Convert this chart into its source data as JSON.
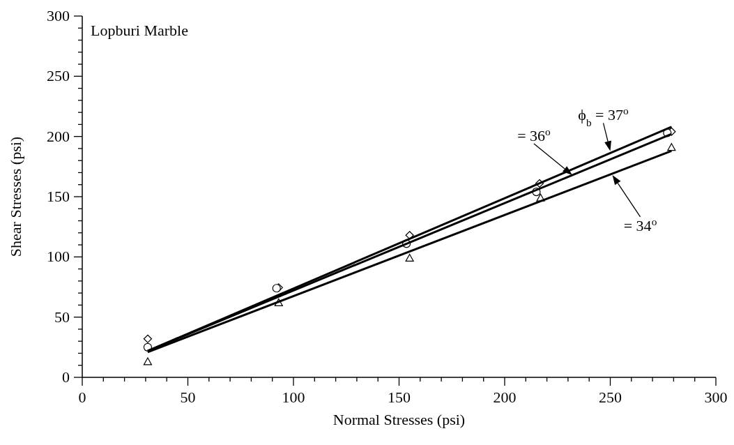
{
  "chart_data": {
    "type": "scatter",
    "xlabel": "Normal Stresses (psi)",
    "ylabel": "Shear Stresses (psi)",
    "xlim": [
      0,
      300
    ],
    "ylim": [
      0,
      300
    ],
    "xticks": [
      0,
      {
        "value": 10,
        "label": null
      },
      {
        "value": 20,
        "label": null
      },
      {
        "value": 30,
        "label": null
      },
      {
        "value": 40,
        "label": null
      },
      50,
      {
        "value": 60,
        "label": null
      },
      {
        "value": 70,
        "label": null
      },
      {
        "value": 80,
        "label": null
      },
      {
        "value": 90,
        "label": null
      },
      100,
      {
        "value": 110,
        "label": null
      },
      {
        "value": 120,
        "label": null
      },
      {
        "value": 130,
        "label": null
      },
      {
        "value": 140,
        "label": null
      },
      150,
      {
        "value": 160,
        "label": null
      },
      {
        "value": 170,
        "label": null
      },
      {
        "value": 180,
        "label": null
      },
      {
        "value": 190,
        "label": null
      },
      200,
      {
        "value": 210,
        "label": null
      },
      {
        "value": 220,
        "label": null
      },
      {
        "value": 230,
        "label": null
      },
      {
        "value": 240,
        "label": null
      },
      250,
      {
        "value": 260,
        "label": null
      },
      {
        "value": 270,
        "label": null
      },
      {
        "value": 280,
        "label": null
      },
      {
        "value": 290,
        "label": null
      },
      300
    ],
    "yticks": [
      0,
      {
        "value": 10,
        "label": null
      },
      {
        "value": 20,
        "label": null
      },
      {
        "value": 30,
        "label": null
      },
      {
        "value": 40,
        "label": null
      },
      50,
      {
        "value": 60,
        "label": null
      },
      {
        "value": 70,
        "label": null
      },
      {
        "value": 80,
        "label": null
      },
      {
        "value": 90,
        "label": null
      },
      100,
      {
        "value": 110,
        "label": null
      },
      {
        "value": 120,
        "label": null
      },
      {
        "value": 130,
        "label": null
      },
      {
        "value": 140,
        "label": null
      },
      150,
      {
        "value": 160,
        "label": null
      },
      {
        "value": 170,
        "label": null
      },
      {
        "value": 180,
        "label": null
      },
      {
        "value": 190,
        "label": null
      },
      200,
      {
        "value": 210,
        "label": null
      },
      {
        "value": 220,
        "label": null
      },
      {
        "value": 230,
        "label": null
      },
      {
        "value": 240,
        "label": null
      },
      250,
      {
        "value": 260,
        "label": null
      },
      {
        "value": 270,
        "label": null
      },
      {
        "value": 280,
        "label": null
      },
      {
        "value": 290,
        "label": null
      },
      300
    ],
    "grid": false,
    "series": [
      {
        "marker": "diamond",
        "color": "#000000",
        "x": [
          31,
          93,
          155,
          216.5,
          279
        ],
        "values": [
          32,
          74.5,
          118,
          161,
          204
        ]
      },
      {
        "marker": "circle",
        "color": "#000000",
        "x": [
          31,
          92,
          153.5,
          215,
          277
        ],
        "values": [
          25,
          74,
          111,
          154,
          203
        ]
      },
      {
        "marker": "triangle",
        "color": "#000000",
        "x": [
          31,
          93,
          155,
          217,
          279
        ],
        "values": [
          13,
          62,
          99,
          149,
          191
        ]
      },
      {
        "type": "line",
        "marker": "none",
        "color": "#000000",
        "x": [
          31,
          279
        ],
        "values": [
          22,
          208
        ]
      },
      {
        "type": "line",
        "marker": "none",
        "color": "#000000",
        "x": [
          31,
          279
        ],
        "values": [
          22,
          202
        ]
      },
      {
        "type": "line",
        "marker": "none",
        "color": "#000000",
        "x": [
          31,
          279
        ],
        "values": [
          21,
          188
        ]
      }
    ],
    "annotations": [
      "Lopburi Marble",
      {
        "text": "ϕ$_{b}$ = 37$^{o}$",
        "x": 250,
        "y": 188
      },
      {
        "text": "= 36$^{o}$",
        "x": 232,
        "y": 168
      },
      {
        "text": "= 34$^{o}$",
        "x": 251,
        "y": 168
      }
    ]
  }
}
